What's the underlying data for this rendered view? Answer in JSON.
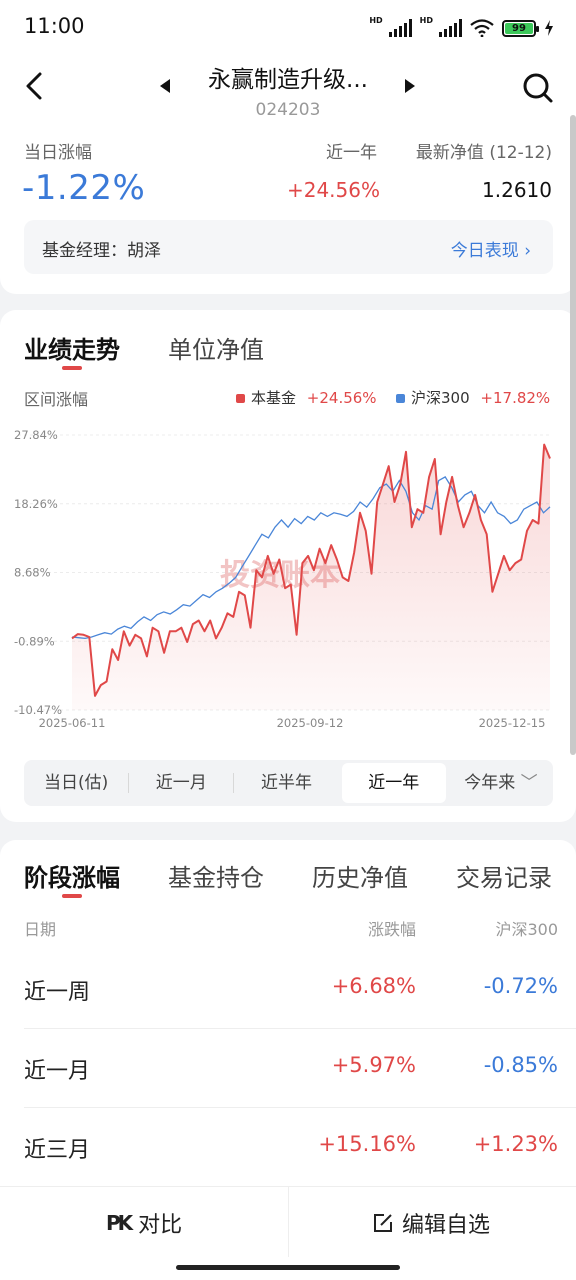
{
  "status": {
    "time": "11:00",
    "battery": "99"
  },
  "nav": {
    "title": "永赢制造升级...",
    "code": "024203"
  },
  "summary": {
    "daily_label": "当日涨幅",
    "daily_value": "-1.22%",
    "year_label": "近一年",
    "year_value": "+24.56%",
    "nav_label": "最新净值 (12-12)",
    "nav_value": "1.2610",
    "manager": "基金经理：胡泽",
    "today_link": "今日表现 ›"
  },
  "chart_tabs": [
    "业绩走势",
    "单位净值"
  ],
  "chart_header": {
    "range_label": "区间涨幅",
    "fund_name": "本基金",
    "fund_value": "+24.56%",
    "index_name": "沪深300",
    "index_value": "+17.82%"
  },
  "watermark": "投资账本",
  "colors": {
    "fund": "#e04848",
    "index": "#4a86d8",
    "accent": "#e04848",
    "blue": "#3b7ad8"
  },
  "chart_data": {
    "type": "line",
    "x_ticks": [
      "2025-06-11",
      "2025-09-12",
      "2025-12-15"
    ],
    "y_ticks": [
      "27.84%",
      "18.26%",
      "8.68%",
      "-0.89%",
      "-10.47%"
    ],
    "ylim": [
      -10.47,
      27.84
    ],
    "series": [
      {
        "name": "本基金",
        "color": "#e04848",
        "values": [
          -0.5,
          0.1,
          0,
          -0.3,
          -8.5,
          -7.0,
          -6.5,
          -2.0,
          -3.5,
          0.5,
          -1.5,
          0.0,
          -0.5,
          -3.0,
          1.0,
          0.5,
          -2.5,
          0.5,
          0.5,
          1.0,
          -1.0,
          1.5,
          2.0,
          0.5,
          2.0,
          -0.5,
          1.0,
          3.0,
          2.5,
          6.0,
          5.5,
          1.0,
          9.0,
          8.0,
          11.0,
          8.5,
          10.5,
          6.5,
          7.0,
          0.0,
          10.0,
          11.0,
          9.0,
          12.0,
          10.0,
          12.5,
          10.5,
          8.0,
          7.5,
          11.5,
          17.0,
          14.5,
          8.5,
          18.5,
          21.0,
          23.5,
          18.5,
          21.0,
          25.5,
          15.0,
          17.5,
          17.0,
          22.0,
          24.5,
          14.0,
          18.5,
          22.0,
          18.0,
          15.0,
          17.0,
          19.5,
          16.0,
          14.0,
          6.0,
          8.5,
          11.0,
          9.0,
          10.0,
          10.5,
          14.5,
          16.0,
          15.5,
          26.5,
          24.56
        ]
      },
      {
        "name": "沪深300",
        "color": "#4a86d8",
        "values": [
          -0.3,
          -0.4,
          -0.5,
          -0.3,
          0.0,
          0.3,
          0.1,
          0.8,
          1.2,
          0.9,
          1.8,
          2.5,
          2.0,
          2.8,
          3.2,
          2.9,
          3.5,
          4.2,
          4.0,
          4.8,
          5.6,
          5.2,
          6.0,
          6.5,
          7.2,
          8.0,
          9.5,
          11.0,
          12.5,
          14.0,
          13.5,
          15.0,
          16.0,
          15.0,
          16.2,
          15.5,
          16.5,
          16.0,
          17.0,
          16.5,
          17.0,
          16.8,
          16.5,
          17.2,
          18.5,
          17.8,
          19.0,
          20.5,
          21.0,
          20.0,
          21.5,
          20.0,
          17.0,
          16.0,
          18.0,
          17.5,
          21.5,
          22.0,
          20.5,
          18.5,
          19.5,
          20.0,
          18.0,
          17.0,
          18.5,
          17.0,
          16.5,
          15.5,
          16.0,
          17.5,
          18.0,
          18.5,
          17.0,
          17.82
        ]
      }
    ]
  },
  "ranges": [
    "当日(估)",
    "近一月",
    "近半年",
    "近一年",
    "今年来"
  ],
  "section_tabs": [
    "阶段涨幅",
    "基金持仓",
    "历史净值",
    "交易记录"
  ],
  "table": {
    "headers": [
      "日期",
      "涨跌幅",
      "沪深300"
    ],
    "rows": [
      {
        "label": "近一周",
        "v1": "+6.68%",
        "v2": "-0.72%"
      },
      {
        "label": "近一月",
        "v1": "+5.97%",
        "v2": "-0.85%"
      },
      {
        "label": "近三月",
        "v1": "+15.16%",
        "v2": "+1.23%"
      }
    ]
  },
  "bottom": {
    "compare": "对比",
    "edit": "编辑自选"
  }
}
